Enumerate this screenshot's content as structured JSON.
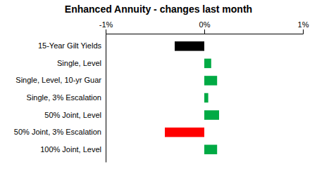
{
  "chart_data": {
    "type": "bar",
    "orientation": "horizontal",
    "title": "Enhanced Annuity - changes last month",
    "categories": [
      "15-Year Gilt Yields",
      "Single, Level",
      "Single, Level, 10-yr Guar",
      "Single, 3% Escalation",
      "50% Joint, Level",
      "50% Joint, 3% Escalation",
      "100% Joint, Level"
    ],
    "values": [
      -0.3,
      0.07,
      0.13,
      0.04,
      0.15,
      -0.4,
      0.13
    ],
    "colors": [
      "#000000",
      "#00aa44",
      "#00aa44",
      "#00aa44",
      "#00aa44",
      "#ff0000",
      "#00aa44"
    ],
    "xlim": [
      -1.0,
      1.0
    ],
    "xticks": [
      {
        "value": -1.0,
        "label": "-1%"
      },
      {
        "value": 0.0,
        "label": "0%"
      },
      {
        "value": 1.0,
        "label": "1%"
      }
    ]
  }
}
